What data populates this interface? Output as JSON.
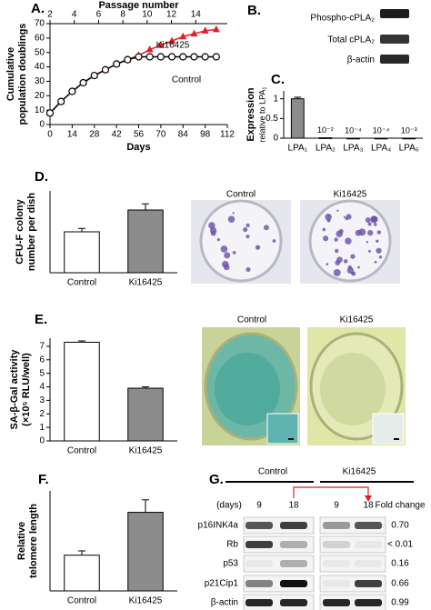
{
  "chart_data": [
    {
      "type": "line",
      "panel": "A.",
      "xlabel": "Days",
      "x2label": "Passage number",
      "ylabel": [
        "Cumulative",
        "population doublings"
      ],
      "x": [
        0,
        7,
        14,
        21,
        28,
        35,
        42,
        49,
        56,
        63,
        70,
        77,
        84,
        91,
        98,
        105
      ],
      "xlim": [
        0,
        112
      ],
      "xticks": [
        0,
        14,
        28,
        42,
        56,
        70,
        84,
        98,
        112
      ],
      "x2lim": [
        2,
        16.6
      ],
      "x2ticks": [
        2,
        4,
        6,
        8,
        10,
        12,
        14
      ],
      "ylim": [
        0,
        70
      ],
      "yticks": [
        0,
        10,
        20,
        30,
        40,
        50,
        60,
        70
      ],
      "series": [
        {
          "name": "Ki16425",
          "color": "#e3202a",
          "marker": "triangle",
          "values": [
            8,
            16,
            23,
            29,
            34,
            38,
            42,
            45,
            48,
            52,
            55,
            58,
            61,
            63,
            65,
            66
          ]
        },
        {
          "name": "Control",
          "color": "#000000",
          "marker": "circle",
          "values": [
            8,
            16,
            23,
            29,
            34,
            38,
            42,
            45,
            47,
            47,
            47,
            47,
            47,
            47,
            47,
            47
          ]
        }
      ]
    },
    {
      "type": "bar",
      "panel": "C.",
      "ylabel": [
        "Expression",
        "relative to LPA₁"
      ],
      "categories": [
        "LPA₁",
        "LPA₂",
        "LPA₃",
        "LPA₄",
        "LPA₅"
      ],
      "values": [
        1,
        0.01,
        0.0001,
        0.0001,
        0.001
      ],
      "value_labels": [
        null,
        "10⁻²",
        "10⁻⁴",
        "10⁻⁴",
        "10⁻³"
      ],
      "errors": [
        0.04,
        0,
        0,
        0,
        0
      ],
      "colors": [
        "#8c8c8c",
        "#8c8c8c",
        "#8c8c8c",
        "#8c8c8c",
        "#8c8c8c"
      ],
      "ylim": [
        0,
        1.2
      ],
      "yticks": [
        0,
        0.5,
        1
      ]
    },
    {
      "type": "bar",
      "panel": "D.",
      "ylabel": [
        "CFU-F colony",
        "number per dish"
      ],
      "categories": [
        "Control",
        "Ki16425"
      ],
      "values": [
        30,
        46
      ],
      "errors": [
        2.5,
        4.5
      ],
      "colors": [
        "#ffffff",
        "#8c8c8c"
      ],
      "ylim": [
        0,
        60
      ]
    },
    {
      "type": "bar",
      "panel": "E.",
      "ylabel": [
        "SA-β-Gal activity",
        "(×10⁵ RLU/well)"
      ],
      "categories": [
        "Control",
        "Ki16425"
      ],
      "values": [
        7.3,
        3.9
      ],
      "errors": [
        0.1,
        0.1
      ],
      "colors": [
        "#ffffff",
        "#8c8c8c"
      ],
      "ylim": [
        0,
        7.6
      ],
      "yticks": [
        0,
        1,
        2,
        3,
        4,
        5,
        6,
        7
      ]
    },
    {
      "type": "bar",
      "panel": "F.",
      "ylabel": [
        "Relative",
        "telomere length"
      ],
      "categories": [
        "Control",
        "Ki16425"
      ],
      "values": [
        1.0,
        2.2
      ],
      "errors": [
        0.12,
        0.35
      ],
      "colors": [
        "#ffffff",
        "#8c8c8c"
      ],
      "ylim": [
        0,
        2.8
      ]
    }
  ],
  "blot_b": {
    "panel": "B.",
    "rows": [
      "Phospho-cPLA₂",
      "Total cPLA₂",
      "β-actin"
    ]
  },
  "photos_d": {
    "labels": [
      "Control",
      "Ki16425"
    ]
  },
  "photos_e": {
    "labels": [
      "Control",
      "Ki16425"
    ]
  },
  "blot_g": {
    "panel": "G.",
    "groups": [
      "Control",
      "Ki16425"
    ],
    "days_label": "(days)",
    "days": [
      9,
      18,
      9,
      18
    ],
    "fold_header": "Fold change",
    "rows": [
      {
        "label": "p16INK4a",
        "fold": "0.70"
      },
      {
        "label": "Rb",
        "fold": "< 0.01"
      },
      {
        "label": "p53",
        "fold": "0.16"
      },
      {
        "label": "p21Cip1",
        "fold": "0.66"
      },
      {
        "label": "β-actin",
        "fold": "0.99"
      }
    ]
  }
}
